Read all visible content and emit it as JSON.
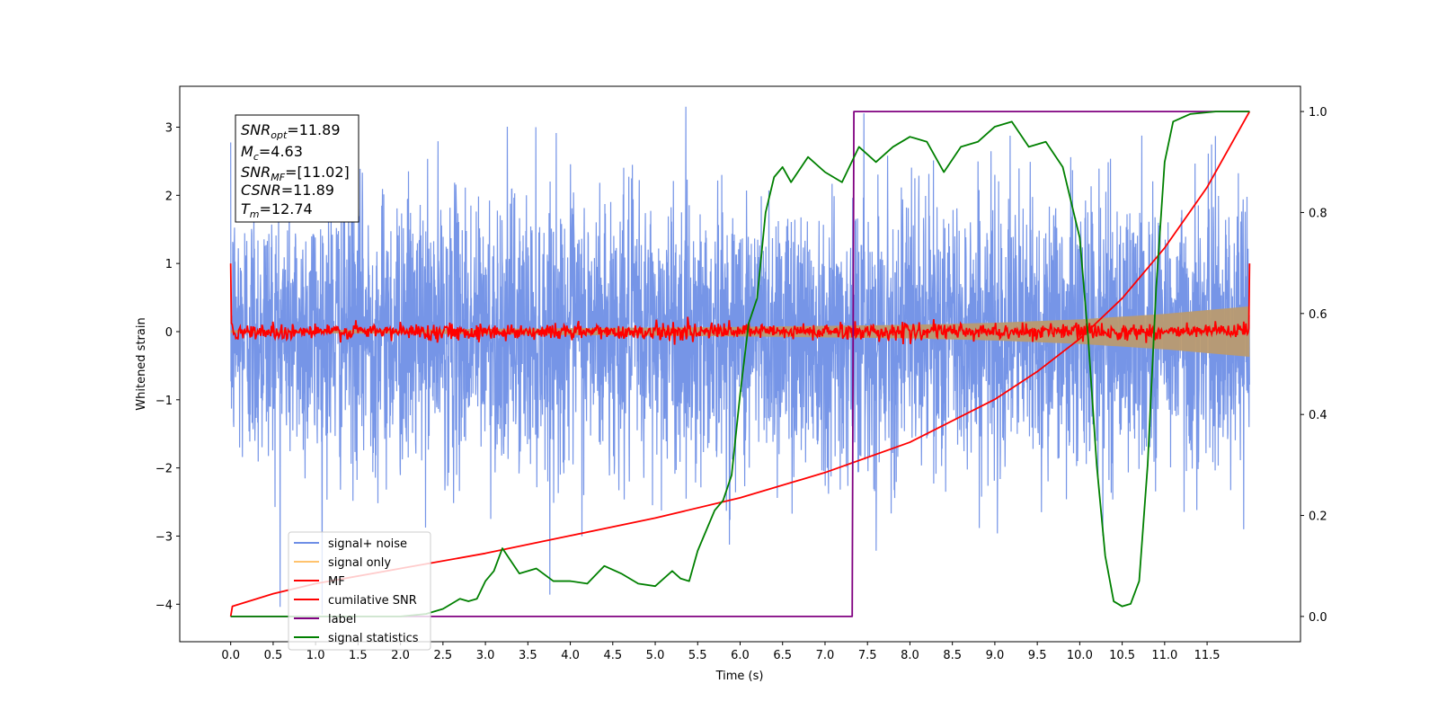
{
  "chart_data": {
    "type": "line",
    "xlabel": "Time (s)",
    "ylabel": "Whitened strain",
    "xlim": [
      -0.6,
      12.6
    ],
    "ylim_left": [
      -4.55,
      3.6
    ],
    "ylim_right": [
      -0.05,
      1.05
    ],
    "x_ticks": [
      "0.0",
      "0.5",
      "1.0",
      "1.5",
      "2.0",
      "2.5",
      "3.0",
      "3.5",
      "4.0",
      "4.5",
      "5.0",
      "5.5",
      "6.0",
      "6.5",
      "7.0",
      "7.5",
      "8.0",
      "8.5",
      "9.0",
      "9.5",
      "10.0",
      "10.5",
      "11.0",
      "11.5"
    ],
    "y_ticks_left": [
      "−4",
      "−3",
      "−2",
      "−1",
      "0",
      "1",
      "2",
      "3"
    ],
    "y_ticks_right": [
      "0.0",
      "0.2",
      "0.4",
      "0.6",
      "0.8",
      "1.0"
    ],
    "grid": false,
    "legend_position": "lower-left",
    "annotations": {
      "snr_opt": {
        "base": "SNR",
        "sub": "opt",
        "value": "=11.89"
      },
      "mc": {
        "base": "M",
        "sub": "c",
        "value": "=4.63"
      },
      "snr_mf": {
        "base": "SNR",
        "sub": "MF",
        "value": "=[11.02]"
      },
      "csnr": {
        "base": "CSNR",
        "sub": "",
        "value": "=11.89"
      },
      "tm": {
        "base": "T",
        "sub": "m",
        "value": "=12.74"
      }
    },
    "series": [
      {
        "name": "signal+ noise",
        "color": "#6f8fe6",
        "axis": "left",
        "x_range": [
          0.0,
          12.0
        ],
        "approx_std": 1.0,
        "approx_range": [
          -4.15,
          3.3
        ]
      },
      {
        "name": "signal only",
        "color": "#ffc36e",
        "axis": "left",
        "envelope": {
          "x": [
            0.0,
            2.0,
            4.0,
            6.0,
            8.0,
            9.0,
            10.0,
            11.0,
            12.0
          ],
          "amplitude": [
            0.02,
            0.03,
            0.05,
            0.07,
            0.1,
            0.13,
            0.18,
            0.26,
            0.37
          ]
        }
      },
      {
        "name": "MF",
        "color": "#ff0000",
        "axis": "left",
        "x_range": [
          0.0,
          12.0
        ],
        "start_value": 1.0,
        "end_value": 1.0,
        "approx_std": 0.06
      },
      {
        "name": "cumilative SNR",
        "color": "#ff0000",
        "axis": "right",
        "x": [
          0.0,
          0.02,
          0.5,
          1.0,
          2.0,
          3.0,
          4.0,
          5.0,
          6.0,
          7.0,
          8.0,
          9.0,
          9.5,
          10.0,
          10.5,
          11.0,
          11.5,
          12.0
        ],
        "values": [
          0.0,
          0.02,
          0.045,
          0.065,
          0.095,
          0.125,
          0.16,
          0.195,
          0.235,
          0.285,
          0.345,
          0.43,
          0.485,
          0.55,
          0.63,
          0.73,
          0.85,
          1.0
        ]
      },
      {
        "name": "label",
        "color": "#800080",
        "axis": "right",
        "x": [
          0.0,
          7.32,
          7.34,
          12.0
        ],
        "values": [
          0.0,
          0.0,
          1.0,
          1.0
        ]
      },
      {
        "name": "signal statistics",
        "color": "#008000",
        "axis": "right",
        "x": [
          0.0,
          0.5,
          1.0,
          1.5,
          2.0,
          2.3,
          2.5,
          2.6,
          2.7,
          2.8,
          2.9,
          3.0,
          3.1,
          3.2,
          3.3,
          3.4,
          3.6,
          3.8,
          4.0,
          4.2,
          4.4,
          4.6,
          4.8,
          5.0,
          5.2,
          5.3,
          5.4,
          5.5,
          5.6,
          5.7,
          5.8,
          5.9,
          6.0,
          6.1,
          6.2,
          6.3,
          6.4,
          6.5,
          6.6,
          6.8,
          7.0,
          7.2,
          7.4,
          7.6,
          7.8,
          8.0,
          8.2,
          8.4,
          8.6,
          8.8,
          9.0,
          9.2,
          9.4,
          9.6,
          9.8,
          10.0,
          10.1,
          10.2,
          10.3,
          10.4,
          10.5,
          10.6,
          10.7,
          10.8,
          10.9,
          11.0,
          11.1,
          11.3,
          11.6,
          12.0
        ],
        "values": [
          0.0,
          0.0,
          0.0,
          0.0,
          0.0,
          0.005,
          0.015,
          0.025,
          0.035,
          0.03,
          0.035,
          0.07,
          0.09,
          0.135,
          0.11,
          0.085,
          0.095,
          0.07,
          0.07,
          0.065,
          0.1,
          0.085,
          0.065,
          0.06,
          0.09,
          0.075,
          0.07,
          0.13,
          0.17,
          0.21,
          0.23,
          0.28,
          0.44,
          0.58,
          0.63,
          0.8,
          0.87,
          0.89,
          0.86,
          0.91,
          0.88,
          0.86,
          0.93,
          0.9,
          0.93,
          0.95,
          0.94,
          0.88,
          0.93,
          0.94,
          0.97,
          0.98,
          0.93,
          0.94,
          0.89,
          0.75,
          0.55,
          0.3,
          0.12,
          0.03,
          0.02,
          0.025,
          0.07,
          0.3,
          0.65,
          0.9,
          0.98,
          0.995,
          1.0,
          1.0
        ]
      }
    ]
  }
}
